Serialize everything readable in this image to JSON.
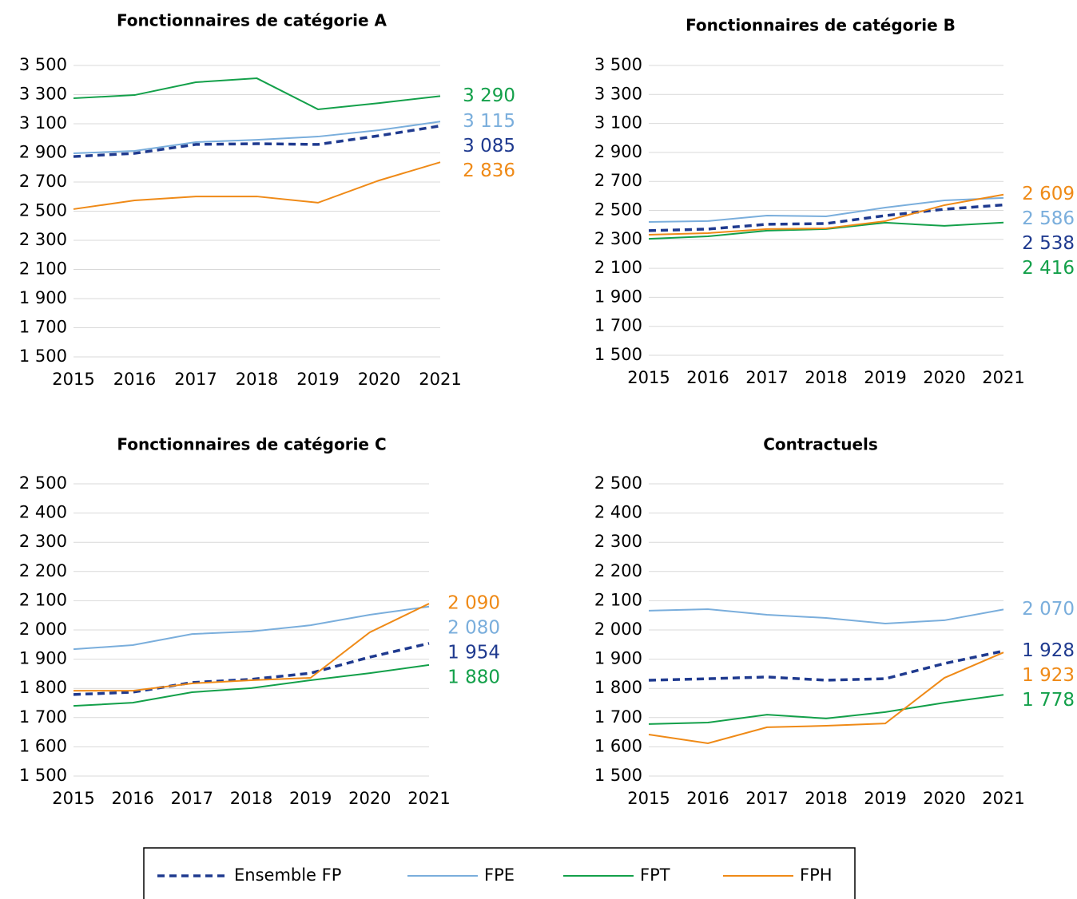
{
  "chart_data": [
    {
      "type": "line",
      "title": "Fonctionnaires de catégorie A",
      "categories": [
        "2015",
        "2016",
        "2017",
        "2018",
        "2019",
        "2020",
        "2021"
      ],
      "ylim": [
        1500,
        3500
      ],
      "yticks": [
        {
          "value": 1500,
          "label": "1 500"
        },
        {
          "value": 1700,
          "label": "1 700"
        },
        {
          "value": 1900,
          "label": "1 900"
        },
        {
          "value": 2100,
          "label": "2 100"
        },
        {
          "value": 2300,
          "label": "2 300"
        },
        {
          "value": 2500,
          "label": "2 500"
        },
        {
          "value": 2700,
          "label": "2 700"
        },
        {
          "value": 2900,
          "label": "2 900"
        },
        {
          "value": 3100,
          "label": "3 100"
        },
        {
          "value": 3300,
          "label": "3 300"
        },
        {
          "value": 3500,
          "label": "3 500"
        }
      ],
      "grid": true,
      "series": [
        {
          "name": "Ensemble FP",
          "color": "#1f3a8f",
          "dashed": true,
          "values": [
            2875,
            2897,
            2958,
            2963,
            2958,
            3018,
            3085
          ],
          "value_labels": [
            null,
            null,
            null,
            null,
            null,
            null,
            "3 085"
          ]
        },
        {
          "name": "FPE",
          "color": "#7aaedc",
          "values": [
            2897,
            2914,
            2974,
            2990,
            3012,
            3056,
            3115
          ],
          "value_labels": [
            null,
            null,
            null,
            null,
            null,
            null,
            "3 115"
          ]
        },
        {
          "name": "FPT",
          "color": "#13a04a",
          "values": [
            3275,
            3297,
            3385,
            3412,
            3199,
            3242,
            3290
          ],
          "value_labels": [
            null,
            null,
            null,
            null,
            null,
            null,
            "3 290"
          ]
        },
        {
          "name": "FPH",
          "color": "#ef8a17",
          "values": [
            2514,
            2574,
            2601,
            2601,
            2558,
            2711,
            2836
          ],
          "value_labels": [
            null,
            null,
            null,
            null,
            null,
            null,
            "2 836"
          ]
        }
      ]
    },
    {
      "type": "line",
      "title": "Fonctionnaires de catégorie B",
      "categories": [
        "2015",
        "2016",
        "2017",
        "2018",
        "2019",
        "2020",
        "2021"
      ],
      "ylim": [
        1500,
        3500
      ],
      "yticks": [
        {
          "value": 1500,
          "label": "1 500"
        },
        {
          "value": 1700,
          "label": "1 700"
        },
        {
          "value": 1900,
          "label": "1 900"
        },
        {
          "value": 2100,
          "label": "2 100"
        },
        {
          "value": 2300,
          "label": "2 300"
        },
        {
          "value": 2500,
          "label": "2 500"
        },
        {
          "value": 2700,
          "label": "2 700"
        },
        {
          "value": 2900,
          "label": "2 900"
        },
        {
          "value": 3100,
          "label": "3 100"
        },
        {
          "value": 3300,
          "label": "3 300"
        },
        {
          "value": 3500,
          "label": "3 500"
        }
      ],
      "grid": true,
      "series": [
        {
          "name": "Ensemble FP",
          "color": "#1f3a8f",
          "dashed": true,
          "values": [
            2360,
            2371,
            2404,
            2409,
            2464,
            2508,
            2538
          ],
          "value_labels": [
            null,
            null,
            null,
            null,
            null,
            null,
            "2 538"
          ]
        },
        {
          "name": "FPE",
          "color": "#7aaedc",
          "values": [
            2420,
            2426,
            2464,
            2459,
            2519,
            2569,
            2586
          ],
          "value_labels": [
            null,
            null,
            null,
            null,
            null,
            null,
            "2 586"
          ]
        },
        {
          "name": "FPT",
          "color": "#13a04a",
          "values": [
            2304,
            2321,
            2360,
            2371,
            2415,
            2393,
            2416
          ],
          "value_labels": [
            null,
            null,
            null,
            null,
            null,
            null,
            "2 416"
          ]
        },
        {
          "name": "FPH",
          "color": "#ef8a17",
          "values": [
            2332,
            2343,
            2371,
            2376,
            2426,
            2536,
            2609
          ],
          "value_labels": [
            null,
            null,
            null,
            null,
            null,
            null,
            "2 609"
          ]
        }
      ]
    },
    {
      "type": "line",
      "title": "Fonctionnaires de catégorie C",
      "categories": [
        "2015",
        "2016",
        "2017",
        "2018",
        "2019",
        "2020",
        "2021"
      ],
      "ylim": [
        1500,
        2500
      ],
      "yticks": [
        {
          "value": 1500,
          "label": "1 500"
        },
        {
          "value": 1600,
          "label": "1 600"
        },
        {
          "value": 1700,
          "label": "1 700"
        },
        {
          "value": 1800,
          "label": "1 800"
        },
        {
          "value": 1900,
          "label": "1 900"
        },
        {
          "value": 2000,
          "label": "2 000"
        },
        {
          "value": 2100,
          "label": "2 100"
        },
        {
          "value": 2200,
          "label": "2 200"
        },
        {
          "value": 2300,
          "label": "2 300"
        },
        {
          "value": 2400,
          "label": "2 400"
        },
        {
          "value": 2500,
          "label": "2 500"
        }
      ],
      "grid": true,
      "series": [
        {
          "name": "Ensemble FP",
          "color": "#1f3a8f",
          "dashed": true,
          "values": [
            1779,
            1787,
            1820,
            1831,
            1852,
            1907,
            1954
          ],
          "value_labels": [
            null,
            null,
            null,
            null,
            null,
            null,
            "1 954"
          ]
        },
        {
          "name": "FPE",
          "color": "#7aaedc",
          "values": [
            1934,
            1948,
            1986,
            1995,
            2016,
            2052,
            2080
          ],
          "value_labels": [
            null,
            null,
            null,
            null,
            null,
            null,
            "2 080"
          ]
        },
        {
          "name": "FPT",
          "color": "#13a04a",
          "values": [
            1740,
            1751,
            1787,
            1801,
            1828,
            1852,
            1880
          ],
          "value_labels": [
            null,
            null,
            null,
            null,
            null,
            null,
            "1 880"
          ]
        },
        {
          "name": "FPH",
          "color": "#ef8a17",
          "values": [
            1792,
            1792,
            1817,
            1828,
            1836,
            1992,
            2090
          ],
          "value_labels": [
            null,
            null,
            null,
            null,
            null,
            null,
            "2 090"
          ]
        }
      ]
    },
    {
      "type": "line",
      "title": "Contractuels",
      "categories": [
        "2015",
        "2016",
        "2017",
        "2018",
        "2019",
        "2020",
        "2021"
      ],
      "ylim": [
        1500,
        2500
      ],
      "yticks": [
        {
          "value": 1500,
          "label": "1 500"
        },
        {
          "value": 1600,
          "label": "1 600"
        },
        {
          "value": 1700,
          "label": "1 700"
        },
        {
          "value": 1800,
          "label": "1 800"
        },
        {
          "value": 1900,
          "label": "1 900"
        },
        {
          "value": 2000,
          "label": "2 000"
        },
        {
          "value": 2100,
          "label": "2 100"
        },
        {
          "value": 2200,
          "label": "2 200"
        },
        {
          "value": 2300,
          "label": "2 300"
        },
        {
          "value": 2400,
          "label": "2 400"
        },
        {
          "value": 2500,
          "label": "2 500"
        }
      ],
      "grid": true,
      "series": [
        {
          "name": "Ensemble FP",
          "color": "#1f3a8f",
          "dashed": true,
          "values": [
            1828,
            1833,
            1839,
            1828,
            1833,
            1885,
            1928
          ],
          "value_labels": [
            null,
            null,
            null,
            null,
            null,
            null,
            "1 928"
          ]
        },
        {
          "name": "FPE",
          "color": "#7aaedc",
          "values": [
            2066,
            2071,
            2052,
            2041,
            2022,
            2033,
            2070
          ],
          "value_labels": [
            null,
            null,
            null,
            null,
            null,
            null,
            "2 070"
          ]
        },
        {
          "name": "FPT",
          "color": "#13a04a",
          "values": [
            1678,
            1683,
            1710,
            1697,
            1719,
            1751,
            1778
          ],
          "value_labels": [
            null,
            null,
            null,
            null,
            null,
            null,
            "1 778"
          ]
        },
        {
          "name": "FPH",
          "color": "#ef8a17",
          "values": [
            1642,
            1612,
            1667,
            1672,
            1680,
            1836,
            1923
          ],
          "value_labels": [
            null,
            null,
            null,
            null,
            null,
            null,
            "1 923"
          ]
        }
      ]
    }
  ]
}
